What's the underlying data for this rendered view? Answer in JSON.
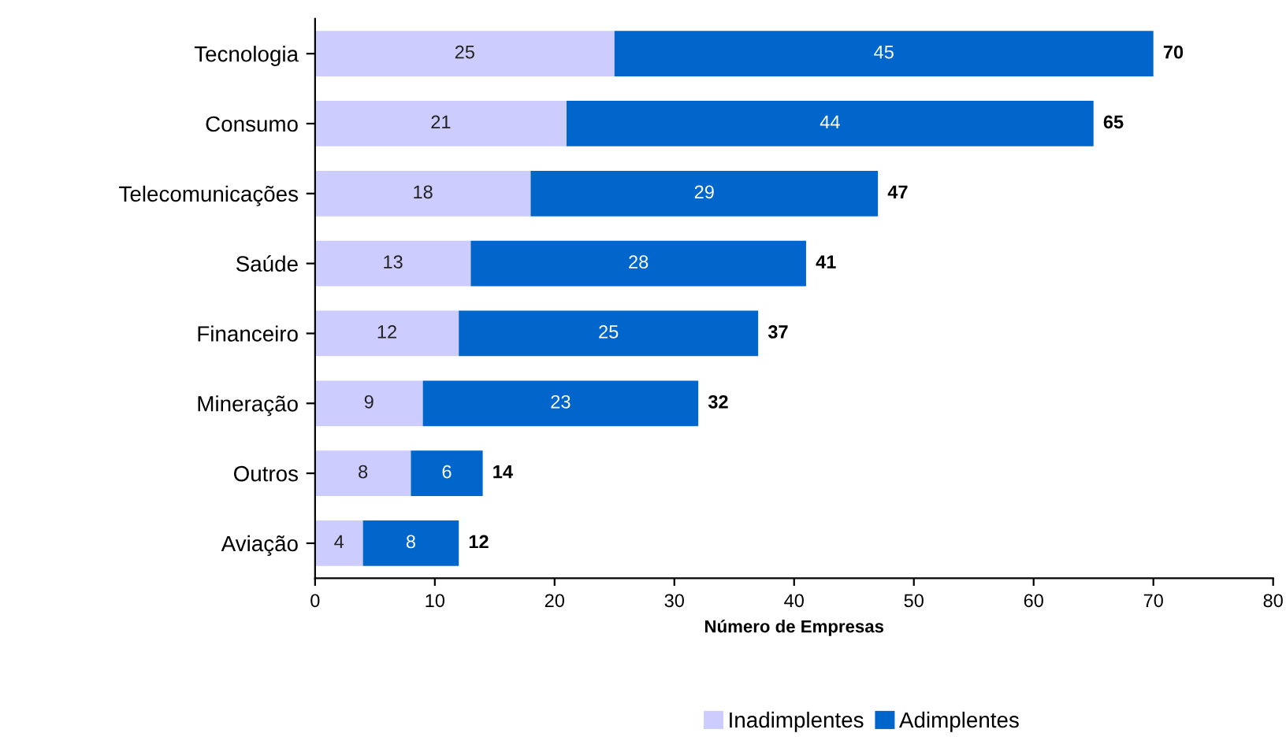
{
  "chart_data": {
    "type": "bar",
    "orientation": "horizontal",
    "stacked": true,
    "xlabel": "Número de Empresas",
    "categories": [
      "Tecnologia",
      "Consumo",
      "Telecomunicações",
      "Saúde",
      "Financeiro",
      "Mineração",
      "Outros",
      "Aviação"
    ],
    "series": [
      {
        "name": "Inadimplentes",
        "color": "#ccccff",
        "values": [
          25,
          21,
          18,
          13,
          12,
          9,
          8,
          4
        ]
      },
      {
        "name": "Adimplentes",
        "color": "#0066cc",
        "values": [
          45,
          44,
          29,
          28,
          25,
          23,
          6,
          8
        ]
      }
    ],
    "totals": [
      "70",
      "65",
      "47",
      "41",
      "37",
      "32",
      "14",
      "12"
    ],
    "data_labels": true,
    "xlim": [
      0,
      80
    ],
    "xticks": [
      0,
      10,
      20,
      30,
      40,
      50,
      60,
      70,
      80
    ],
    "grid": false,
    "legend": "bottom"
  }
}
